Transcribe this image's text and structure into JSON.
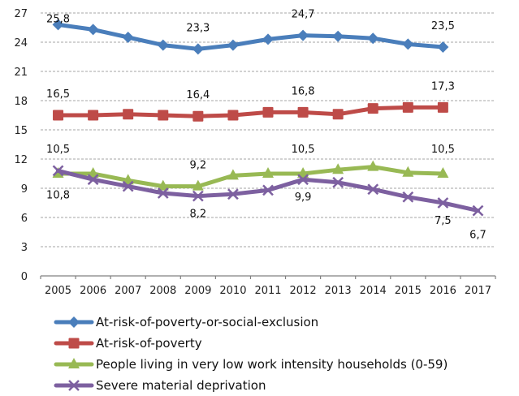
{
  "chart_data": {
    "type": "line",
    "title": "",
    "xlabel": "",
    "ylabel": "",
    "ylim": [
      0,
      27
    ],
    "yticks": [
      0,
      3,
      6,
      9,
      12,
      15,
      18,
      21,
      24,
      27
    ],
    "grid": true,
    "legend_position": "bottom",
    "categories": [
      "2005",
      "2006",
      "2007",
      "2008",
      "2009",
      "2010",
      "2011",
      "2012",
      "2013",
      "2014",
      "2015",
      "2016",
      "2017"
    ],
    "series": [
      {
        "name": "At-risk-of-poverty-or-social-exclusion",
        "color": "#4a7ebb",
        "marker": "diamond",
        "values": [
          25.8,
          25.3,
          24.5,
          23.7,
          23.3,
          23.7,
          24.3,
          24.7,
          24.6,
          24.4,
          23.8,
          23.5,
          null
        ],
        "labels": [
          {
            "index": 0,
            "text": "25,8",
            "pos": "above"
          },
          {
            "index": 4,
            "text": "23,3",
            "pos": "above"
          },
          {
            "index": 7,
            "text": "24,7",
            "pos": "above"
          },
          {
            "index": 11,
            "text": "23,5",
            "pos": "above"
          }
        ]
      },
      {
        "name": "At-risk-of-poverty",
        "color": "#be4b48",
        "marker": "square",
        "values": [
          16.5,
          16.5,
          16.6,
          16.5,
          16.4,
          16.5,
          16.8,
          16.8,
          16.6,
          17.2,
          17.3,
          17.3,
          null
        ],
        "labels": [
          {
            "index": 0,
            "text": "16,5",
            "pos": "above"
          },
          {
            "index": 4,
            "text": "16,4",
            "pos": "above"
          },
          {
            "index": 7,
            "text": "16,8",
            "pos": "above"
          },
          {
            "index": 11,
            "text": "17,3",
            "pos": "above"
          }
        ]
      },
      {
        "name": "People living in very low work intensity households (0-59)",
        "color": "#98b954",
        "marker": "triangle",
        "values": [
          10.5,
          10.5,
          9.8,
          9.2,
          9.2,
          10.3,
          10.5,
          10.5,
          10.9,
          11.2,
          10.6,
          10.5,
          null
        ],
        "labels": [
          {
            "index": 0,
            "text": "10,5",
            "pos": "above"
          },
          {
            "index": 4,
            "text": "9,2",
            "pos": "above"
          },
          {
            "index": 7,
            "text": "10,5",
            "pos": "above"
          },
          {
            "index": 11,
            "text": "10,5",
            "pos": "above"
          }
        ]
      },
      {
        "name": "Severe material deprivation",
        "color": "#7d60a0",
        "marker": "x",
        "values": [
          10.8,
          9.9,
          9.2,
          8.5,
          8.2,
          8.4,
          8.8,
          9.9,
          9.6,
          8.9,
          8.1,
          7.5,
          6.7
        ],
        "labels": [
          {
            "index": 0,
            "text": "10,8",
            "pos": "below"
          },
          {
            "index": 4,
            "text": "8,2",
            "pos": "below"
          },
          {
            "index": 7,
            "text": "9,9",
            "pos": "below"
          },
          {
            "index": 11,
            "text": "7,5",
            "pos": "below"
          },
          {
            "index": 12,
            "text": "6,7",
            "pos": "below"
          }
        ]
      }
    ]
  }
}
